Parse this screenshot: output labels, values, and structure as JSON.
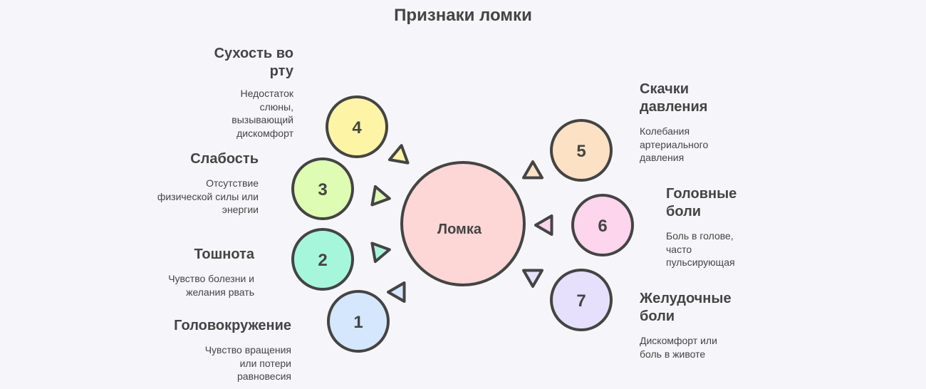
{
  "title": "Признаки ломки",
  "center": {
    "label": "Ломка",
    "color": "#fdd6d6"
  },
  "items": [
    {
      "number": "1",
      "title": "Головокружение",
      "description": "Чувство вращения или потери равновесия",
      "color": "#d5e7fc"
    },
    {
      "number": "2",
      "title": "Тошнота",
      "description": "Чувство болезни и желания рвать",
      "color": "#a6f6dc"
    },
    {
      "number": "3",
      "title": "Слабость",
      "description": "Отсутствие физической силы или энергии",
      "color": "#defcb2"
    },
    {
      "number": "4",
      "title": "Сухость во рту",
      "description": "Недостаток слюны, вызывающий дискомфорт",
      "color": "#fdf4a6"
    },
    {
      "number": "5",
      "title": "Скачки давления",
      "description": "Колебания артериального давления",
      "color": "#fde1c4"
    },
    {
      "number": "6",
      "title": "Головные боли",
      "description": "Боль в голове, часто пульсирующая",
      "color": "#fdd5ec"
    },
    {
      "number": "7",
      "title": "Желудочные боли",
      "description": "Дискомфорт или боль в животе",
      "color": "#e6e0fc"
    }
  ]
}
